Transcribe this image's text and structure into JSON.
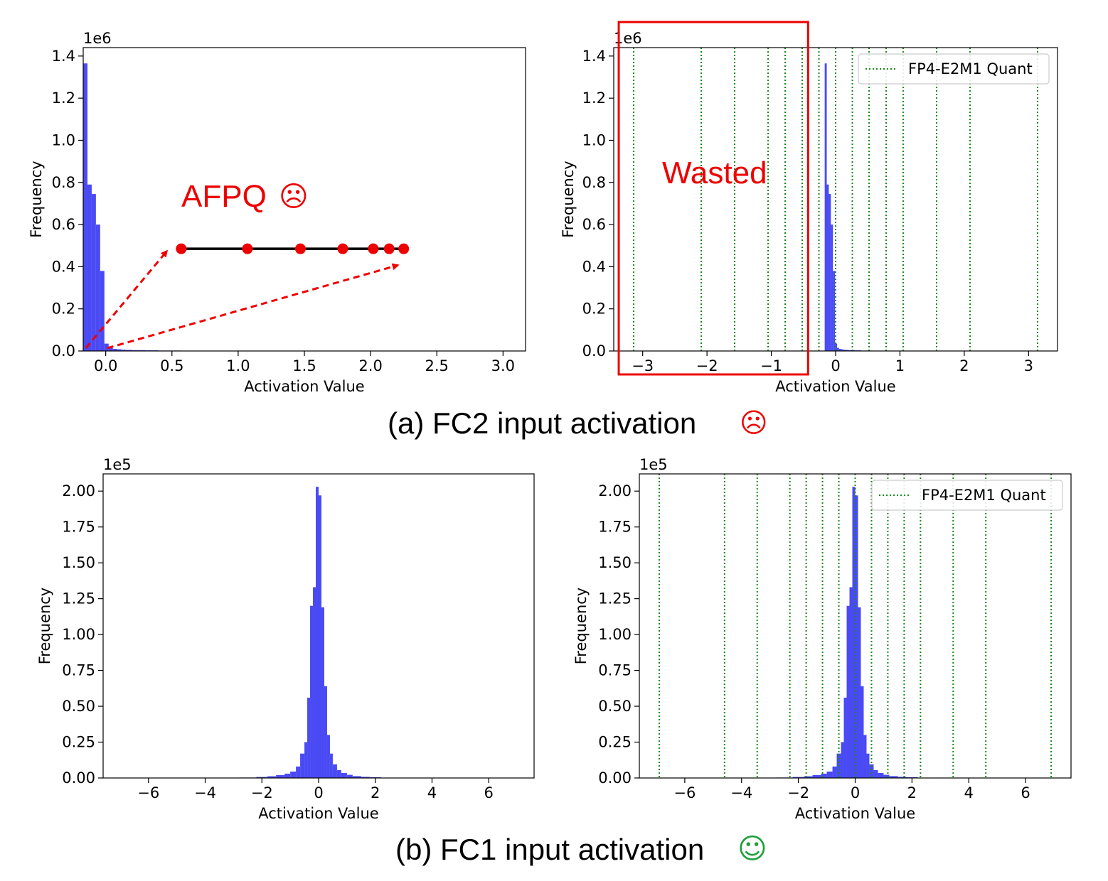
{
  "figure": {
    "caption_a": "(a) FC2 input activation",
    "caption_b": "(b) FC1 input activation",
    "face_sad": "☹",
    "face_happy": "☺",
    "sad_color": "#ee0000",
    "happy_color": "#1ea03a"
  },
  "annotations": {
    "afpq_label": "AFPQ",
    "wasted_label": "Wasted",
    "afpq_points_x": [
      0.57,
      1.07,
      1.47,
      1.79,
      2.02,
      2.14,
      2.25
    ],
    "afpq_points_y": 0.485,
    "afpq_color": "#ee0000"
  },
  "chart_data": [
    {
      "id": "fc2-hist",
      "type": "bar",
      "xlabel": "Activation Value",
      "ylabel": "Frequency",
      "y_scale_label": "1e6",
      "xlim": [
        -0.17,
        3.17
      ],
      "ylim": [
        0,
        1.44
      ],
      "xticks": [
        0.0,
        0.5,
        1.0,
        1.5,
        2.0,
        2.5,
        3.0
      ],
      "xtick_labels": [
        "0.0",
        "0.5",
        "1.0",
        "1.5",
        "2.0",
        "2.5",
        "3.0"
      ],
      "yticks": [
        0.0,
        0.2,
        0.4,
        0.6,
        0.8,
        1.0,
        1.2,
        1.4
      ],
      "ytick_labels": [
        "0.0",
        "0.2",
        "0.4",
        "0.6",
        "0.8",
        "1.0",
        "1.2",
        "1.4"
      ],
      "bin_edges": [
        -0.17,
        -0.138,
        -0.106,
        -0.074,
        -0.042,
        -0.01,
        0.022,
        0.054,
        0.086,
        0.118,
        0.15,
        0.2,
        0.3,
        0.4,
        0.57
      ],
      "values": [
        1.365,
        0.79,
        0.745,
        0.6,
        0.38,
        0.035,
        0.015,
        0.01,
        0.008,
        0.006,
        0.005,
        0.004,
        0.003,
        0.002
      ],
      "bar_color": "#4a4af5",
      "quant_lines": [],
      "legend": null
    },
    {
      "id": "fc2-quant",
      "type": "bar",
      "xlabel": "Activation Value",
      "ylabel": "Frequency",
      "y_scale_label": "1e6",
      "xlim": [
        -3.45,
        3.45
      ],
      "ylim": [
        0,
        1.44
      ],
      "xticks": [
        -3,
        -2,
        -1,
        0,
        1,
        2,
        3
      ],
      "xtick_labels": [
        "−3",
        "−2",
        "−1",
        "0",
        "1",
        "2",
        "3"
      ],
      "yticks": [
        0.0,
        0.2,
        0.4,
        0.6,
        0.8,
        1.0,
        1.2,
        1.4
      ],
      "ytick_labels": [
        "0.0",
        "0.2",
        "0.4",
        "0.6",
        "0.8",
        "1.0",
        "1.2",
        "1.4"
      ],
      "bin_edges": [
        -0.17,
        -0.138,
        -0.106,
        -0.074,
        -0.042,
        -0.01,
        0.022,
        0.054,
        0.086,
        0.118,
        0.15,
        0.2,
        0.3,
        0.4,
        0.57
      ],
      "values": [
        1.365,
        0.79,
        0.745,
        0.6,
        0.38,
        0.035,
        0.015,
        0.01,
        0.008,
        0.006,
        0.005,
        0.004,
        0.003,
        0.002
      ],
      "bar_color": "#4a4af5",
      "quant_lines": [
        -3.14,
        -2.09,
        -1.57,
        -1.05,
        -0.785,
        -0.52,
        -0.26,
        0.0,
        0.26,
        0.52,
        0.785,
        1.05,
        1.57,
        2.09,
        3.14
      ],
      "quant_color": "#1a8a1a",
      "legend": {
        "label": "FP4-E2M1 Quant",
        "position": "upper right"
      },
      "wasted_box": [
        -3.35,
        -0.45
      ]
    },
    {
      "id": "fc1-hist",
      "type": "bar",
      "xlabel": "Activation Value",
      "ylabel": "Frequency",
      "y_scale_label": "1e5",
      "xlim": [
        -7.6,
        7.6
      ],
      "ylim": [
        0,
        2.12
      ],
      "xticks": [
        -6,
        -4,
        -2,
        0,
        2,
        4,
        6
      ],
      "xtick_labels": [
        "−6",
        "−4",
        "−2",
        "0",
        "2",
        "4",
        "6"
      ],
      "yticks": [
        0.0,
        0.25,
        0.5,
        0.75,
        1.0,
        1.25,
        1.5,
        1.75,
        2.0
      ],
      "ytick_labels": [
        "0.00",
        "0.25",
        "0.50",
        "0.75",
        "1.00",
        "1.25",
        "1.50",
        "1.75",
        "2.00"
      ],
      "bin_edges": [
        -2.8,
        -2.2,
        -1.8,
        -1.5,
        -1.2,
        -1.0,
        -0.8,
        -0.65,
        -0.5,
        -0.4,
        -0.3,
        -0.2,
        -0.1,
        0.0,
        0.1,
        0.2,
        0.3,
        0.4,
        0.5,
        0.65,
        0.8,
        1.0,
        1.2,
        1.5,
        1.8,
        2.2,
        2.9
      ],
      "values": [
        0.003,
        0.007,
        0.012,
        0.02,
        0.03,
        0.045,
        0.08,
        0.17,
        0.25,
        0.56,
        1.2,
        1.33,
        2.03,
        1.97,
        1.19,
        0.64,
        0.3,
        0.17,
        0.095,
        0.055,
        0.035,
        0.022,
        0.013,
        0.008,
        0.005,
        0.002
      ],
      "bar_color": "#4a4af5",
      "quant_lines": [],
      "legend": null
    },
    {
      "id": "fc1-quant",
      "type": "bar",
      "xlabel": "Activation Value",
      "ylabel": "Frequency",
      "y_scale_label": "1e5",
      "xlim": [
        -7.6,
        7.6
      ],
      "ylim": [
        0,
        2.12
      ],
      "xticks": [
        -6,
        -4,
        -2,
        0,
        2,
        4,
        6
      ],
      "xtick_labels": [
        "−6",
        "−4",
        "−2",
        "0",
        "2",
        "4",
        "6"
      ],
      "yticks": [
        0.0,
        0.25,
        0.5,
        0.75,
        1.0,
        1.25,
        1.5,
        1.75,
        2.0
      ],
      "ytick_labels": [
        "0.00",
        "0.25",
        "0.50",
        "0.75",
        "1.00",
        "1.25",
        "1.50",
        "1.75",
        "2.00"
      ],
      "bin_edges": [
        -2.8,
        -2.2,
        -1.8,
        -1.5,
        -1.2,
        -1.0,
        -0.8,
        -0.65,
        -0.5,
        -0.4,
        -0.3,
        -0.2,
        -0.1,
        0.0,
        0.1,
        0.2,
        0.3,
        0.4,
        0.5,
        0.65,
        0.8,
        1.0,
        1.2,
        1.5,
        1.8,
        2.2,
        2.9
      ],
      "values": [
        0.003,
        0.007,
        0.012,
        0.02,
        0.03,
        0.045,
        0.08,
        0.17,
        0.25,
        0.56,
        1.2,
        1.33,
        2.03,
        1.97,
        1.19,
        0.64,
        0.3,
        0.17,
        0.095,
        0.055,
        0.035,
        0.022,
        0.013,
        0.008,
        0.005,
        0.002
      ],
      "bar_color": "#4a4af5",
      "quant_lines": [
        -6.9,
        -4.6,
        -3.45,
        -2.3,
        -1.725,
        -1.15,
        -0.575,
        0.0,
        0.575,
        1.15,
        1.725,
        2.3,
        3.45,
        4.6,
        6.9
      ],
      "quant_color": "#1a8a1a",
      "legend": {
        "label": "FP4-E2M1 Quant",
        "position": "upper right"
      }
    }
  ]
}
